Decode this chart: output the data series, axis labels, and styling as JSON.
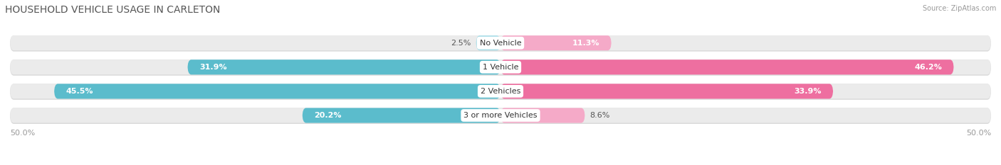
{
  "title": "HOUSEHOLD VEHICLE USAGE IN CARLETON",
  "source": "Source: ZipAtlas.com",
  "categories": [
    "No Vehicle",
    "1 Vehicle",
    "2 Vehicles",
    "3 or more Vehicles"
  ],
  "owner_values": [
    2.5,
    31.9,
    45.5,
    20.2
  ],
  "renter_values": [
    11.3,
    46.2,
    33.9,
    8.6
  ],
  "owner_color": "#5bbccc",
  "renter_color": "#ee6fa0",
  "owner_color_light": "#a8dde8",
  "renter_color_light": "#f5aac8",
  "bg_color": "#ffffff",
  "bar_bg_color": "#ebebeb",
  "bar_bg_shadow": "#d8d8d8",
  "max_value": 50.0,
  "title_fontsize": 10,
  "label_fontsize": 8,
  "category_fontsize": 8,
  "axis_fontsize": 8
}
